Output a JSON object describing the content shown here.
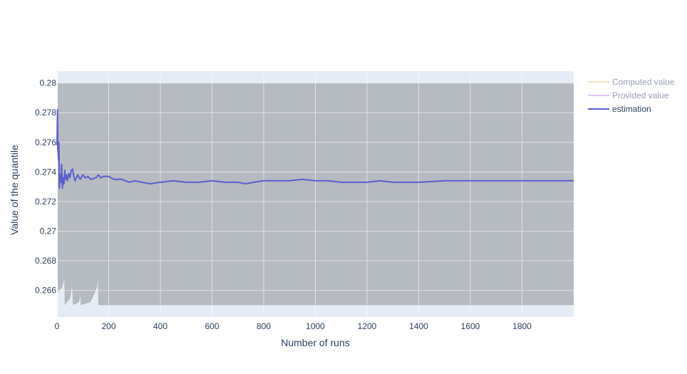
{
  "chart_data": {
    "type": "line",
    "xlabel": "Number of runs",
    "ylabel": "Value of the quantile",
    "xlim": [
      0,
      2000
    ],
    "ylim": [
      0.2642,
      0.2808
    ],
    "x_ticks": [
      0,
      200,
      400,
      600,
      800,
      1000,
      1200,
      1400,
      1600,
      1800
    ],
    "x_tick_labels": [
      "0",
      "200",
      "400",
      "600",
      "800",
      "1000",
      "1200",
      "1400",
      "1600",
      "1800"
    ],
    "y_ticks": [
      0.266,
      0.268,
      0.27,
      0.272,
      0.274,
      0.276,
      0.278,
      0.28
    ],
    "y_tick_labels": [
      "0.266",
      "0.268",
      "0.27",
      "0.272",
      "0.274",
      "0.276",
      "0.278",
      "0.28"
    ],
    "grid": true,
    "legend_position": "top-right",
    "band": {
      "lower": [
        [
          0,
          0.2658
        ],
        [
          20,
          0.2662
        ],
        [
          28,
          0.2668
        ],
        [
          30,
          0.265
        ],
        [
          52,
          0.2655
        ],
        [
          58,
          0.2663
        ],
        [
          62,
          0.265
        ],
        [
          85,
          0.2652
        ],
        [
          90,
          0.2656
        ],
        [
          92,
          0.265
        ],
        [
          130,
          0.2652
        ],
        [
          155,
          0.2662
        ],
        [
          158,
          0.2667
        ],
        [
          160,
          0.265
        ],
        [
          2000,
          0.265
        ]
      ],
      "upper": [
        [
          0,
          0.28
        ],
        [
          2000,
          0.28
        ]
      ],
      "color": "#b3b7be"
    },
    "series": [
      {
        "name": "Computed value",
        "color": "#f7c28f",
        "muted": true,
        "points": []
      },
      {
        "name": "Provided value",
        "color": "#c88cf2",
        "muted": true,
        "points": []
      },
      {
        "name": "estimation",
        "color": "#5a5fcf",
        "muted": false,
        "points": [
          [
            0,
            0.2758
          ],
          [
            2,
            0.2782
          ],
          [
            3,
            0.2755
          ],
          [
            5,
            0.2752
          ],
          [
            6,
            0.2748
          ],
          [
            7,
            0.276
          ],
          [
            8,
            0.2753
          ],
          [
            9,
            0.2729
          ],
          [
            12,
            0.2738
          ],
          [
            15,
            0.2733
          ],
          [
            18,
            0.2745
          ],
          [
            21,
            0.2729
          ],
          [
            24,
            0.2736
          ],
          [
            27,
            0.2732
          ],
          [
            30,
            0.2741
          ],
          [
            33,
            0.2735
          ],
          [
            36,
            0.2738
          ],
          [
            40,
            0.2734
          ],
          [
            45,
            0.2739
          ],
          [
            50,
            0.2736
          ],
          [
            55,
            0.2741
          ],
          [
            60,
            0.2742
          ],
          [
            65,
            0.2737
          ],
          [
            70,
            0.2734
          ],
          [
            80,
            0.2738
          ],
          [
            90,
            0.2735
          ],
          [
            100,
            0.2738
          ],
          [
            110,
            0.2736
          ],
          [
            120,
            0.2737
          ],
          [
            130,
            0.2735
          ],
          [
            150,
            0.2736
          ],
          [
            160,
            0.2738
          ],
          [
            170,
            0.2736
          ],
          [
            180,
            0.2737
          ],
          [
            200,
            0.2737
          ],
          [
            220,
            0.2735
          ],
          [
            250,
            0.2735
          ],
          [
            280,
            0.2733
          ],
          [
            300,
            0.2734
          ],
          [
            330,
            0.2733
          ],
          [
            360,
            0.2732
          ],
          [
            400,
            0.2733
          ],
          [
            450,
            0.2734
          ],
          [
            500,
            0.2733
          ],
          [
            550,
            0.2733
          ],
          [
            600,
            0.2734
          ],
          [
            650,
            0.2733
          ],
          [
            700,
            0.2733
          ],
          [
            730,
            0.2732
          ],
          [
            760,
            0.2733
          ],
          [
            800,
            0.2734
          ],
          [
            850,
            0.2734
          ],
          [
            900,
            0.2734
          ],
          [
            950,
            0.2735
          ],
          [
            1000,
            0.2734
          ],
          [
            1050,
            0.2734
          ],
          [
            1100,
            0.2733
          ],
          [
            1150,
            0.2733
          ],
          [
            1200,
            0.2733
          ],
          [
            1250,
            0.2734
          ],
          [
            1300,
            0.2733
          ],
          [
            1400,
            0.2733
          ],
          [
            1500,
            0.2734
          ],
          [
            1600,
            0.2734
          ],
          [
            1700,
            0.2734
          ],
          [
            1800,
            0.2734
          ],
          [
            1900,
            0.2734
          ],
          [
            2000,
            0.2734
          ]
        ]
      }
    ]
  }
}
